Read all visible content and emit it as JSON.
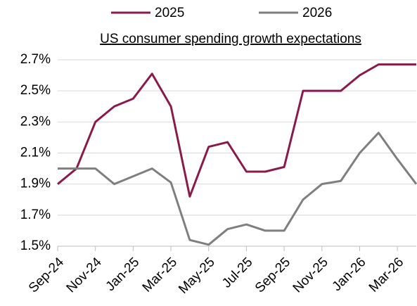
{
  "chart_data": {
    "type": "line",
    "title": "US consumer spending growth expectations",
    "categories": [
      "Sep-24",
      null,
      "Nov-24",
      null,
      "Jan-25",
      null,
      "Mar-25",
      null,
      "May-25",
      null,
      "Jul-25",
      null,
      "Sep-25",
      null,
      "Nov-25",
      null,
      "Jan-26",
      null,
      "Mar-26",
      null
    ],
    "series": [
      {
        "name": "2025",
        "color": "#8b1a4c",
        "values": [
          1.9,
          2.0,
          2.3,
          2.4,
          2.45,
          2.61,
          2.4,
          1.82,
          2.14,
          2.17,
          1.98,
          1.98,
          2.01,
          2.5,
          2.5,
          2.5,
          2.6,
          2.67,
          2.67,
          2.67
        ]
      },
      {
        "name": "2026",
        "color": "#7f7f7f",
        "values": [
          2.0,
          2.0,
          2.0,
          1.9,
          1.95,
          2.0,
          1.91,
          1.54,
          1.51,
          1.61,
          1.64,
          1.6,
          1.6,
          1.8,
          1.9,
          1.92,
          2.1,
          2.23,
          2.06,
          1.9
        ]
      }
    ],
    "ylim": [
      1.5,
      2.7
    ],
    "yticks": [
      {
        "value": 1.5,
        "label": "1.5%"
      },
      {
        "value": 1.7,
        "label": "1.7%"
      },
      {
        "value": 1.9,
        "label": "1.9%"
      },
      {
        "value": 2.1,
        "label": "2.1%"
      },
      {
        "value": 2.3,
        "label": "2.3%"
      },
      {
        "value": 2.5,
        "label": "2.5%"
      },
      {
        "value": 2.7,
        "label": "2.7%"
      }
    ],
    "grid": true,
    "legend": "top"
  }
}
